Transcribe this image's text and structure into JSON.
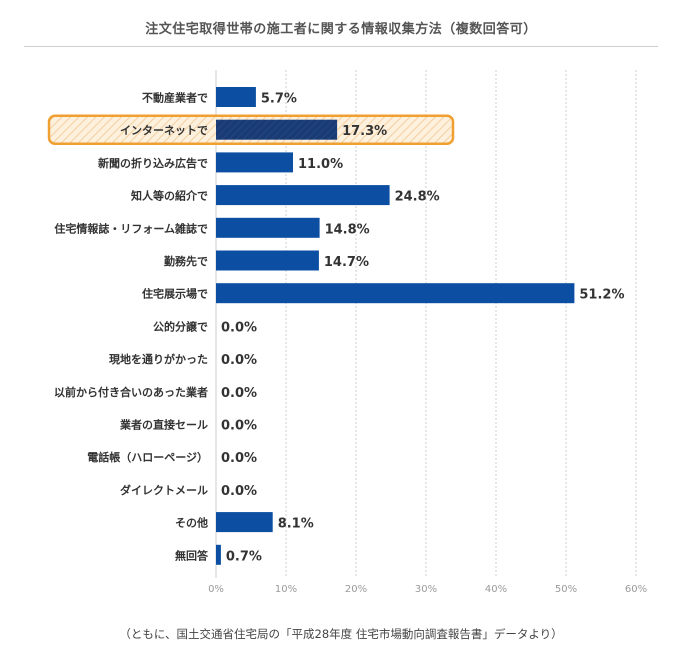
{
  "chart_data": {
    "type": "bar",
    "orientation": "horizontal",
    "title": "注文住宅取得世帯の施工者に関する情報収集方法（複数回答可）",
    "categories": [
      "不動産業者で",
      "インターネットで",
      "新聞の折り込み広告で",
      "知人等の紹介で",
      "住宅情報誌・リフォーム雑誌で",
      "勤務先で",
      "住宅展示場で",
      "公的分譲で",
      "現地を通りがかった",
      "以前から付き合いのあった業者",
      "業者の直接セール",
      "電話帳（ハローページ）",
      "ダイレクトメール",
      "その他",
      "無回答"
    ],
    "values": [
      5.7,
      17.3,
      11.0,
      24.8,
      14.8,
      14.7,
      51.2,
      0.0,
      0.0,
      0.0,
      0.0,
      0.0,
      0.0,
      8.1,
      0.7
    ],
    "value_labels": [
      "5.7%",
      "17.3%",
      "11.0%",
      "24.8%",
      "14.8%",
      "14.7%",
      "51.2%",
      "0.0%",
      "0.0%",
      "0.0%",
      "0.0%",
      "0.0%",
      "0.0%",
      "8.1%",
      "0.7%"
    ],
    "xlim": [
      0,
      60
    ],
    "x_ticks": [
      0,
      10,
      20,
      30,
      40,
      50,
      60
    ],
    "x_tick_labels": [
      "0%",
      "10%",
      "20%",
      "30%",
      "40%",
      "50%",
      "60%"
    ],
    "grid": "vertical dotted",
    "highlighted_category": "インターネットで",
    "colors": {
      "bar": "#0b4ea2",
      "highlight_bar": "#1a3a73",
      "highlight_border": "#f0a030",
      "highlight_fill": "#fdf1de",
      "grid": "#cccccc"
    }
  },
  "footnote": "（ともに、国土交通省住宅局の「平成28年度 住宅市場動向調査報告書」データより）"
}
